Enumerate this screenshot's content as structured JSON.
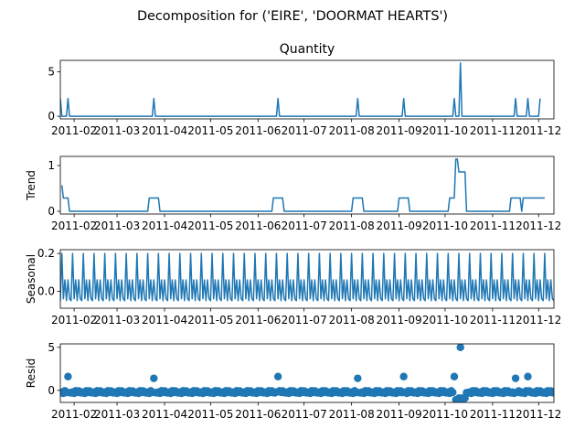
{
  "figure": {
    "suptitle": "Decomposition for ('EIRE', 'DOORMAT HEARTS')",
    "line_color": "#1f77b4"
  },
  "x_ticks": [
    "2011-02",
    "2011-03",
    "2011-04",
    "2011-05",
    "2011-06",
    "2011-07",
    "2011-08",
    "2011-09",
    "2011-10",
    "2011-11",
    "2011-12"
  ],
  "chart_data": [
    {
      "type": "line",
      "title": "Quantity",
      "ylabel": "",
      "x_range": [
        "2011-01-23",
        "2011-12-11"
      ],
      "ylim": [
        -0.3,
        6.3
      ],
      "yticks": [
        "0",
        "5"
      ],
      "y_tick_values": [
        0,
        5
      ],
      "points": [
        {
          "date": "2011-01-23",
          "value": 2
        },
        {
          "date": "2011-01-24",
          "value": 0
        },
        {
          "date": "2011-01-27",
          "value": 0
        },
        {
          "date": "2011-01-28",
          "value": 2
        },
        {
          "date": "2011-01-29",
          "value": 0
        },
        {
          "date": "2011-03-24",
          "value": 0
        },
        {
          "date": "2011-03-25",
          "value": 2
        },
        {
          "date": "2011-03-26",
          "value": 0
        },
        {
          "date": "2011-06-13",
          "value": 0
        },
        {
          "date": "2011-06-14",
          "value": 2
        },
        {
          "date": "2011-06-15",
          "value": 0
        },
        {
          "date": "2011-08-04",
          "value": 0
        },
        {
          "date": "2011-08-05",
          "value": 2
        },
        {
          "date": "2011-08-06",
          "value": 0
        },
        {
          "date": "2011-09-03",
          "value": 0
        },
        {
          "date": "2011-09-04",
          "value": 2
        },
        {
          "date": "2011-09-05",
          "value": 0
        },
        {
          "date": "2011-10-06",
          "value": 0
        },
        {
          "date": "2011-10-07",
          "value": 2
        },
        {
          "date": "2011-10-08",
          "value": 0
        },
        {
          "date": "2011-10-10",
          "value": 0
        },
        {
          "date": "2011-10-11",
          "value": 6
        },
        {
          "date": "2011-10-12",
          "value": 0
        },
        {
          "date": "2011-11-15",
          "value": 0
        },
        {
          "date": "2011-11-16",
          "value": 2
        },
        {
          "date": "2011-11-17",
          "value": 0
        },
        {
          "date": "2011-11-23",
          "value": 0
        },
        {
          "date": "2011-11-24",
          "value": 2
        },
        {
          "date": "2011-11-25",
          "value": 0
        },
        {
          "date": "2011-12-01",
          "value": 0
        },
        {
          "date": "2011-12-02",
          "value": 2
        }
      ]
    },
    {
      "type": "line",
      "title": "",
      "ylabel": "Trend",
      "x_range": [
        "2011-01-23",
        "2011-12-11"
      ],
      "ylim": [
        -0.06,
        1.2
      ],
      "yticks": [
        "0",
        "1"
      ],
      "y_tick_values": [
        0,
        1
      ],
      "points": [
        {
          "date": "2011-01-24",
          "value": 0.57
        },
        {
          "date": "2011-01-25",
          "value": 0.29
        },
        {
          "date": "2011-01-28",
          "value": 0.29
        },
        {
          "date": "2011-01-29",
          "value": 0
        },
        {
          "date": "2011-03-21",
          "value": 0
        },
        {
          "date": "2011-03-22",
          "value": 0.29
        },
        {
          "date": "2011-03-28",
          "value": 0.29
        },
        {
          "date": "2011-03-29",
          "value": 0
        },
        {
          "date": "2011-06-10",
          "value": 0
        },
        {
          "date": "2011-06-11",
          "value": 0.29
        },
        {
          "date": "2011-06-17",
          "value": 0.29
        },
        {
          "date": "2011-06-18",
          "value": 0
        },
        {
          "date": "2011-08-01",
          "value": 0
        },
        {
          "date": "2011-08-02",
          "value": 0.29
        },
        {
          "date": "2011-08-08",
          "value": 0.29
        },
        {
          "date": "2011-08-09",
          "value": 0
        },
        {
          "date": "2011-08-31",
          "value": 0
        },
        {
          "date": "2011-09-01",
          "value": 0.29
        },
        {
          "date": "2011-09-07",
          "value": 0.29
        },
        {
          "date": "2011-09-08",
          "value": 0
        },
        {
          "date": "2011-10-03",
          "value": 0
        },
        {
          "date": "2011-10-04",
          "value": 0.29
        },
        {
          "date": "2011-10-07",
          "value": 0.29
        },
        {
          "date": "2011-10-08",
          "value": 1.14
        },
        {
          "date": "2011-10-09",
          "value": 1.14
        },
        {
          "date": "2011-10-10",
          "value": 0.86
        },
        {
          "date": "2011-10-14",
          "value": 0.86
        },
        {
          "date": "2011-10-15",
          "value": 0
        },
        {
          "date": "2011-11-12",
          "value": 0
        },
        {
          "date": "2011-11-13",
          "value": 0.29
        },
        {
          "date": "2011-11-19",
          "value": 0.29
        },
        {
          "date": "2011-11-20",
          "value": 0
        },
        {
          "date": "2011-11-21",
          "value": 0.29
        },
        {
          "date": "2011-11-27",
          "value": 0.29
        },
        {
          "date": "2011-11-28",
          "value": 0.29
        },
        {
          "date": "2011-12-05",
          "value": 0.29
        }
      ]
    },
    {
      "type": "line",
      "title": "",
      "ylabel": "Seasonal",
      "x_range": [
        "2011-01-23",
        "2011-12-11"
      ],
      "ylim": [
        -0.09,
        0.22
      ],
      "yticks": [
        "0.0",
        "0.2"
      ],
      "y_tick_values": [
        0,
        0.2
      ],
      "start_date": "2011-01-23",
      "end_date": "2011-12-11",
      "weekly_pattern": [
        -0.05,
        0.2,
        -0.04,
        0.06,
        -0.05,
        0.06,
        -0.04
      ]
    },
    {
      "type": "scatter",
      "title": "",
      "ylabel": "Resid",
      "x_range": [
        "2011-01-23",
        "2011-12-11"
      ],
      "ylim": [
        -1.4,
        5.4
      ],
      "yticks": [
        "0",
        "5"
      ],
      "y_tick_values": [
        0,
        5
      ],
      "start_date": "2011-01-23",
      "end_date": "2011-12-11",
      "baseline_pattern": [
        -0.29,
        -0.2,
        -0.34,
        -0.05,
        -0.24,
        -0.06,
        -0.26
      ],
      "outliers": [
        {
          "date": "2011-01-28",
          "value": 1.6
        },
        {
          "date": "2011-03-25",
          "value": 1.4
        },
        {
          "date": "2011-06-14",
          "value": 1.6
        },
        {
          "date": "2011-08-05",
          "value": 1.4
        },
        {
          "date": "2011-09-04",
          "value": 1.6
        },
        {
          "date": "2011-10-07",
          "value": 1.6
        },
        {
          "date": "2011-10-11",
          "value": 5.0
        },
        {
          "date": "2011-10-08",
          "value": -1.1
        },
        {
          "date": "2011-10-09",
          "value": -1.1
        },
        {
          "date": "2011-10-10",
          "value": -0.9
        },
        {
          "date": "2011-10-12",
          "value": -0.9
        },
        {
          "date": "2011-10-13",
          "value": -1.0
        },
        {
          "date": "2011-10-14",
          "value": -0.9
        },
        {
          "date": "2011-11-16",
          "value": 1.4
        },
        {
          "date": "2011-11-24",
          "value": 1.6
        }
      ]
    }
  ]
}
